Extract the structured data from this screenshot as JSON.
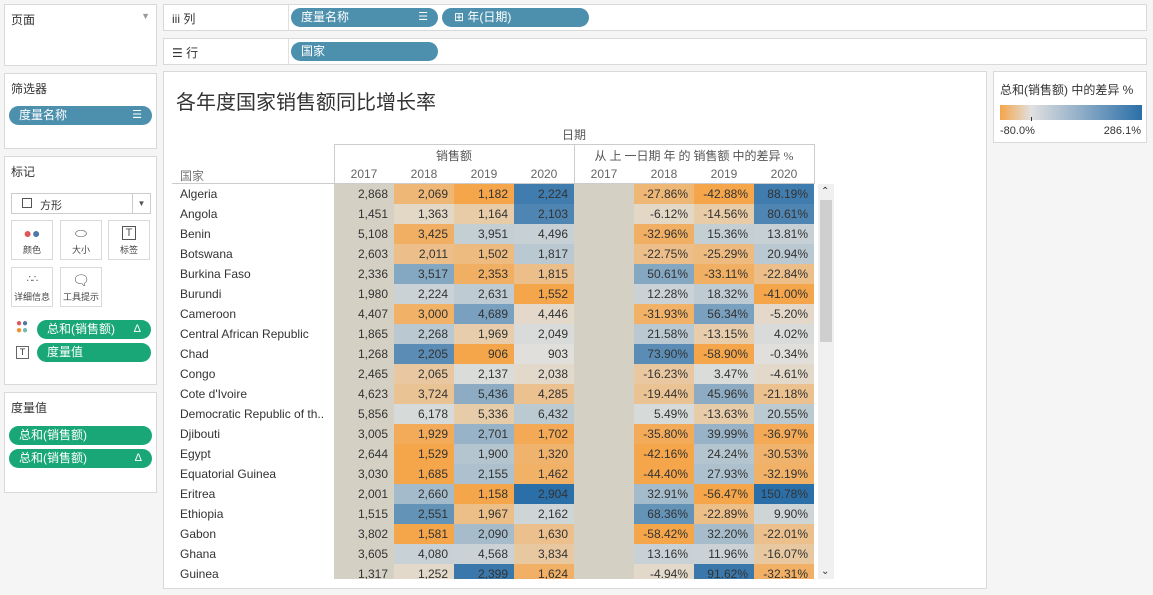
{
  "left_panel": {
    "pages_title": "页面",
    "filters_title": "筛选器",
    "filter_pill": "度量名称",
    "marks_title": "标记",
    "mark_type": "方形",
    "mark_buttons": {
      "color": "颜色",
      "size": "大小",
      "label": "标签",
      "detail": "详细信息",
      "tooltip": "工具提示"
    },
    "mark_pills": {
      "color_pill": "总和(销售额)",
      "label_pill": "度量值"
    },
    "measure_values_title": "度量值",
    "measure_pills": [
      "总和(销售额)",
      "总和(销售额)"
    ],
    "delta_symbol": "Δ"
  },
  "shelves": {
    "columns_label": "列",
    "columns_pills": [
      "度量名称",
      "年(日期)"
    ],
    "rows_label": "行",
    "rows_pills": [
      "国家"
    ]
  },
  "legend": {
    "title": "总和(销售额) 中的差异 %",
    "min": "-80.0%",
    "max": "286.1%",
    "color_low": "#f5a54a",
    "color_mid": "#e0e0e0",
    "color_high": "#2b6fa8"
  },
  "view": {
    "title": "各年度国家销售额同比增长率",
    "date_header": "日期",
    "sales_header": "销售额",
    "diff_header": "从 上 一日期 年 的 销售额 中的差异 %",
    "country_header": "国家",
    "years": [
      "2017",
      "2018",
      "2019",
      "2020"
    ],
    "rows": [
      {
        "country": "Algeria",
        "sales": [
          "2,868",
          "2,069",
          "1,182",
          "2,224"
        ],
        "diff": [
          "",
          "-27.86%",
          "-42.88%",
          "88.19%"
        ]
      },
      {
        "country": "Angola",
        "sales": [
          "1,451",
          "1,363",
          "1,164",
          "2,103"
        ],
        "diff": [
          "",
          "-6.12%",
          "-14.56%",
          "80.61%"
        ]
      },
      {
        "country": "Benin",
        "sales": [
          "5,108",
          "3,425",
          "3,951",
          "4,496"
        ],
        "diff": [
          "",
          "-32.96%",
          "15.36%",
          "13.81%"
        ]
      },
      {
        "country": "Botswana",
        "sales": [
          "2,603",
          "2,011",
          "1,502",
          "1,817"
        ],
        "diff": [
          "",
          "-22.75%",
          "-25.29%",
          "20.94%"
        ]
      },
      {
        "country": "Burkina Faso",
        "sales": [
          "2,336",
          "3,517",
          "2,353",
          "1,815"
        ],
        "diff": [
          "",
          "50.61%",
          "-33.11%",
          "-22.84%"
        ]
      },
      {
        "country": "Burundi",
        "sales": [
          "1,980",
          "2,224",
          "2,631",
          "1,552"
        ],
        "diff": [
          "",
          "12.28%",
          "18.32%",
          "-41.00%"
        ]
      },
      {
        "country": "Cameroon",
        "sales": [
          "4,407",
          "3,000",
          "4,689",
          "4,446"
        ],
        "diff": [
          "",
          "-31.93%",
          "56.34%",
          "-5.20%"
        ]
      },
      {
        "country": "Central African Republic",
        "sales": [
          "1,865",
          "2,268",
          "1,969",
          "2,049"
        ],
        "diff": [
          "",
          "21.58%",
          "-13.15%",
          "4.02%"
        ]
      },
      {
        "country": "Chad",
        "sales": [
          "1,268",
          "2,205",
          "906",
          "903"
        ],
        "diff": [
          "",
          "73.90%",
          "-58.90%",
          "-0.34%"
        ]
      },
      {
        "country": "Congo",
        "sales": [
          "2,465",
          "2,065",
          "2,137",
          "2,038"
        ],
        "diff": [
          "",
          "-16.23%",
          "3.47%",
          "-4.61%"
        ]
      },
      {
        "country": "Cote d'Ivoire",
        "sales": [
          "4,623",
          "3,724",
          "5,436",
          "4,285"
        ],
        "diff": [
          "",
          "-19.44%",
          "45.96%",
          "-21.18%"
        ]
      },
      {
        "country": "Democratic Republic of th..",
        "sales": [
          "5,856",
          "6,178",
          "5,336",
          "6,432"
        ],
        "diff": [
          "",
          "5.49%",
          "-13.63%",
          "20.55%"
        ]
      },
      {
        "country": "Djibouti",
        "sales": [
          "3,005",
          "1,929",
          "2,701",
          "1,702"
        ],
        "diff": [
          "",
          "-35.80%",
          "39.99%",
          "-36.97%"
        ]
      },
      {
        "country": "Egypt",
        "sales": [
          "2,644",
          "1,529",
          "1,900",
          "1,320"
        ],
        "diff": [
          "",
          "-42.16%",
          "24.24%",
          "-30.53%"
        ]
      },
      {
        "country": "Equatorial Guinea",
        "sales": [
          "3,030",
          "1,685",
          "2,155",
          "1,462"
        ],
        "diff": [
          "",
          "-44.40%",
          "27.93%",
          "-32.19%"
        ]
      },
      {
        "country": "Eritrea",
        "sales": [
          "2,001",
          "2,660",
          "1,158",
          "2,904"
        ],
        "diff": [
          "",
          "32.91%",
          "-56.47%",
          "150.78%"
        ]
      },
      {
        "country": "Ethiopia",
        "sales": [
          "1,515",
          "2,551",
          "1,967",
          "2,162"
        ],
        "diff": [
          "",
          "68.36%",
          "-22.89%",
          "9.90%"
        ]
      },
      {
        "country": "Gabon",
        "sales": [
          "3,802",
          "1,581",
          "2,090",
          "1,630"
        ],
        "diff": [
          "",
          "-58.42%",
          "32.20%",
          "-22.01%"
        ]
      },
      {
        "country": "Ghana",
        "sales": [
          "3,605",
          "4,080",
          "4,568",
          "3,834"
        ],
        "diff": [
          "",
          "13.16%",
          "11.96%",
          "-16.07%"
        ]
      },
      {
        "country": "Guinea",
        "sales": [
          "1,317",
          "1,252",
          "2,399",
          "1,624"
        ],
        "diff": [
          "",
          "-4.94%",
          "91.62%",
          "-32.31%"
        ]
      }
    ]
  }
}
